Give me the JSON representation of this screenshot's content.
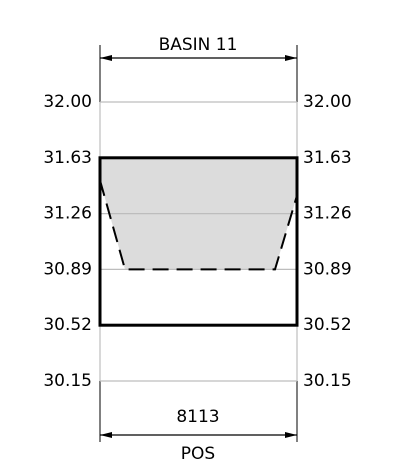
{
  "chart_data": {
    "type": "basin",
    "title": "BASIN 11",
    "ylim": [
      30.15,
      32.0
    ],
    "yticks": [
      {
        "value": 32.0,
        "label": "32.00"
      },
      31.63,
      31.26,
      30.89,
      30.52,
      30.15
    ],
    "box_bottom": 30.52,
    "box_top": 31.63,
    "width": 8113,
    "xlabel": "POS",
    "profile": {
      "x": [
        0,
        1030,
        7207,
        8113
      ],
      "y": [
        31.48,
        30.89,
        30.89,
        31.38
      ]
    },
    "fill_color": "#dcdcdc",
    "grid": true
  }
}
